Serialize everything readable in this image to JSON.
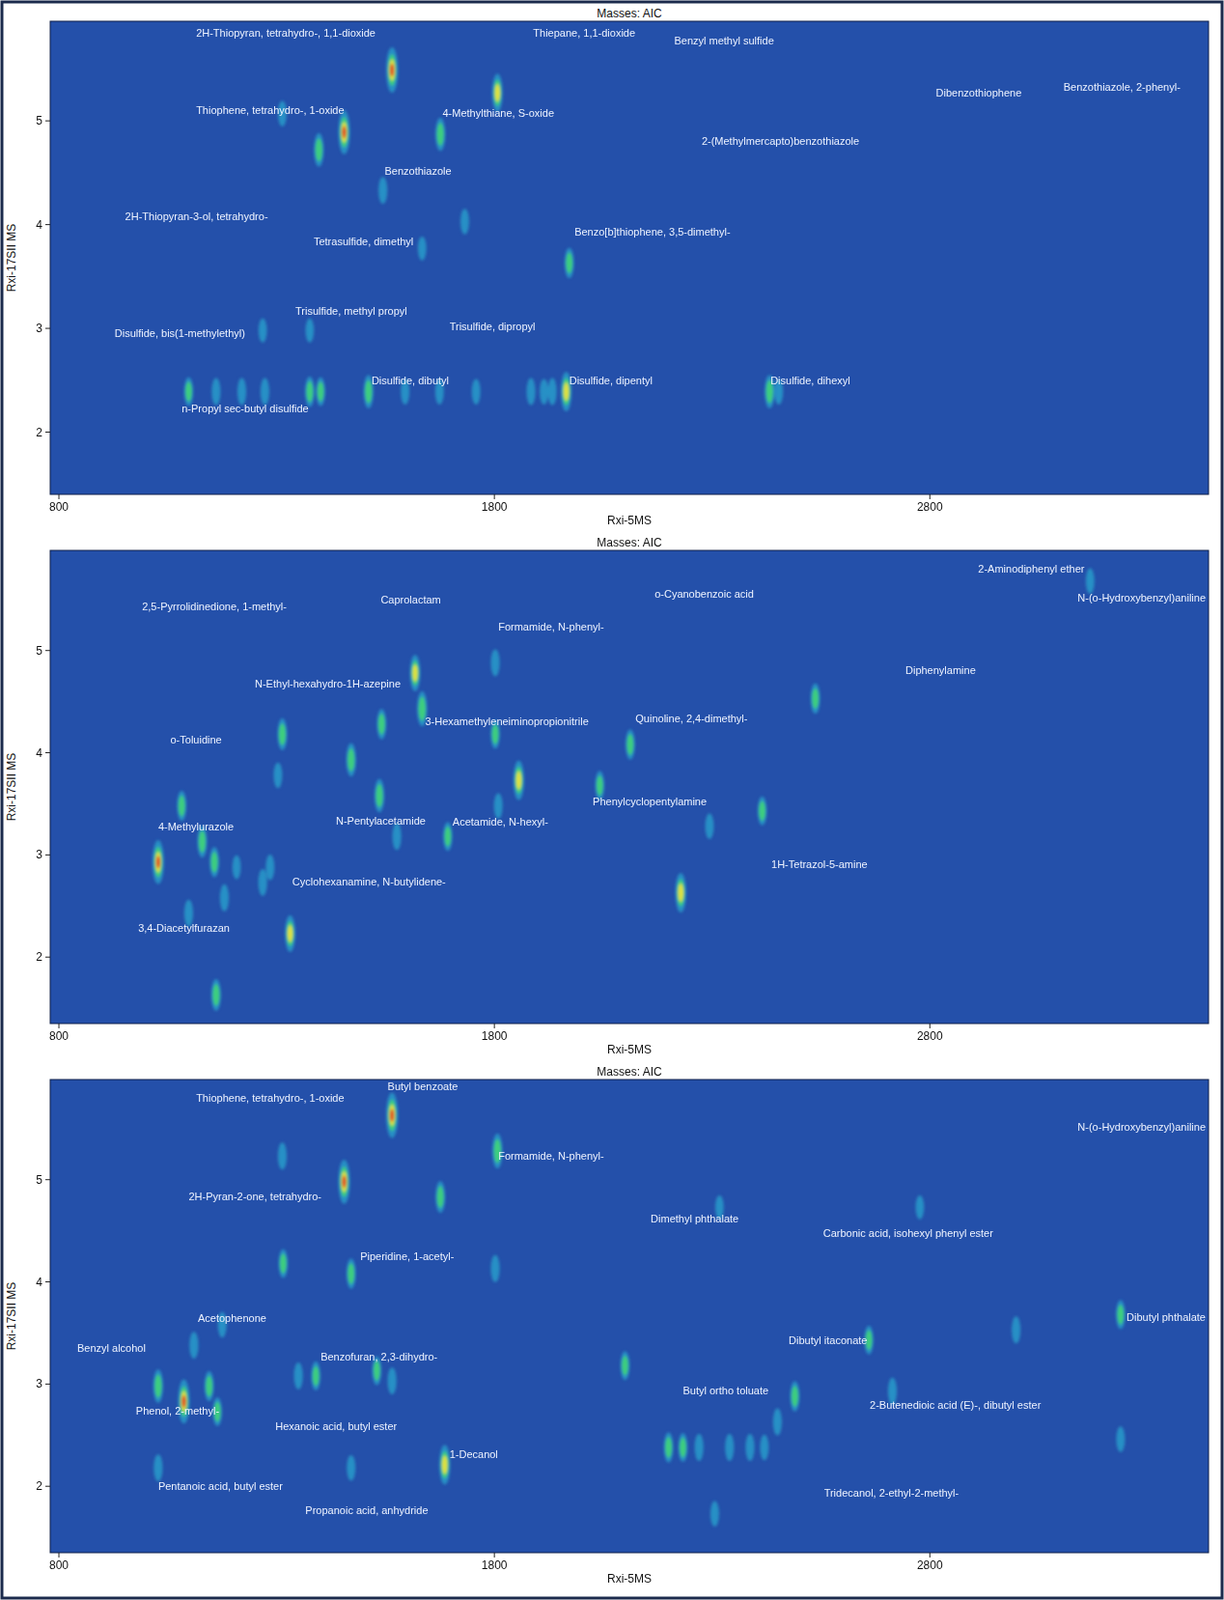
{
  "chart_data": [
    {
      "type": "scatter",
      "title": "Masses: AIC",
      "x_label": "Rxi-5MS",
      "y_label": "Rxi-17SII MS",
      "xlim": [
        780,
        3440
      ],
      "ylim": [
        1.4,
        5.96
      ],
      "xticks": [
        800,
        1800,
        2800
      ],
      "yticks": [
        2,
        3,
        4,
        5
      ],
      "grid": false,
      "x": [
        1565,
        1455,
        1397,
        1313,
        1807,
        1676,
        1544,
        1732,
        1972,
        1376,
        1268,
        1634,
        1098,
        1161,
        1220,
        1273,
        1376,
        1401,
        1511,
        1595,
        1674,
        1758,
        1884,
        1914,
        1933,
        1965,
        2432,
        2453
      ],
      "values": [
        5.49,
        4.89,
        4.72,
        5.07,
        5.27,
        4.87,
        4.33,
        4.03,
        3.63,
        2.98,
        2.98,
        3.77,
        2.39,
        2.39,
        2.39,
        2.39,
        2.39,
        2.39,
        2.39,
        2.39,
        2.39,
        2.39,
        2.39,
        2.39,
        2.39,
        2.39,
        2.39,
        2.39
      ],
      "intensity": [
        1.0,
        0.95,
        0.6,
        0.35,
        0.75,
        0.6,
        0.4,
        0.35,
        0.5,
        0.3,
        0.3,
        0.3,
        0.45,
        0.4,
        0.4,
        0.4,
        0.5,
        0.45,
        0.6,
        0.35,
        0.35,
        0.35,
        0.4,
        0.35,
        0.4,
        0.8,
        0.6,
        0.35
      ],
      "annotations": [
        {
          "text": "2H-Thiopyran, tetrahydro-, 1,1-dioxide",
          "x": 1115,
          "y": 5.81
        },
        {
          "text": "Thiepane, 1,1-dioxide",
          "x": 1889,
          "y": 5.81
        },
        {
          "text": "Benzyl methyl sulfide",
          "x": 2213,
          "y": 5.74
        },
        {
          "text": "Dibenzothiophene",
          "x": 2814,
          "y": 5.23
        },
        {
          "text": "Benzothiazole, 2-phenyl-",
          "x": 3107,
          "y": 5.29
        },
        {
          "text": "Thiophene, tetrahydro-, 1-oxide",
          "x": 1115,
          "y": 5.07
        },
        {
          "text": "4-Methylthiane, S-oxide",
          "x": 1681,
          "y": 5.04
        },
        {
          "text": "2-(Methylmercapto)benzothiazole",
          "x": 2276,
          "y": 4.77
        },
        {
          "text": "Benzothiazole",
          "x": 1548,
          "y": 4.48
        },
        {
          "text": "2H-Thiopyran-3-ol, tetrahydro-",
          "x": 952,
          "y": 4.04
        },
        {
          "text": "Tetrasulfide, dimethyl",
          "x": 1385,
          "y": 3.8
        },
        {
          "text": "Benzo[b]thiophene, 3,5-dimethyl-",
          "x": 1984,
          "y": 3.89
        },
        {
          "text": "Trisulfide, methyl propyl",
          "x": 1343,
          "y": 3.13
        },
        {
          "text": "Trisulfide, dipropyl",
          "x": 1697,
          "y": 2.98
        },
        {
          "text": "Disulfide, bis(1-methylethyl)",
          "x": 928,
          "y": 2.92
        },
        {
          "text": "Disulfide, dibutyl",
          "x": 1518,
          "y": 2.46
        },
        {
          "text": "Disulfide, dipentyl",
          "x": 1972,
          "y": 2.46
        },
        {
          "text": "Disulfide, dihexyl",
          "x": 2434,
          "y": 2.46
        },
        {
          "text": "n-Propyl sec-butyl disulfide",
          "x": 1082,
          "y": 2.19
        }
      ]
    },
    {
      "type": "scatter",
      "title": "Masses: AIC",
      "x_label": "Rxi-5MS",
      "y_label": "Rxi-17SII MS",
      "xlim": [
        780,
        3440
      ],
      "ylim": [
        1.35,
        5.98
      ],
      "xticks": [
        800,
        1800,
        2800
      ],
      "yticks": [
        2,
        3,
        4,
        5
      ],
      "grid": false,
      "x": [
        1028,
        1082,
        1129,
        1157,
        1180,
        1161,
        1098,
        1208,
        1285,
        1268,
        1331,
        1313,
        1303,
        1471,
        1541,
        1536,
        1618,
        1634,
        1576,
        1693,
        1802,
        1802,
        1856,
        1809,
        2042,
        2112,
        2294,
        2228,
        2415,
        2537,
        3168
      ],
      "values": [
        2.93,
        3.48,
        3.13,
        2.93,
        2.58,
        1.63,
        2.43,
        2.88,
        2.88,
        2.73,
        2.23,
        4.18,
        3.78,
        3.93,
        4.28,
        3.58,
        4.78,
        4.43,
        3.18,
        3.18,
        4.18,
        4.88,
        3.73,
        3.48,
        3.68,
        4.08,
        3.28,
        2.63,
        3.43,
        4.53,
        5.68
      ],
      "intensity": [
        0.95,
        0.5,
        0.55,
        0.5,
        0.4,
        0.55,
        0.4,
        0.3,
        0.35,
        0.4,
        0.7,
        0.55,
        0.35,
        0.6,
        0.5,
        0.6,
        0.7,
        0.65,
        0.4,
        0.45,
        0.45,
        0.4,
        0.8,
        0.35,
        0.45,
        0.5,
        0.35,
        0.8,
        0.45,
        0.5,
        0.35
      ],
      "annotations": [
        {
          "text": "2-Aminodiphenyl ether",
          "x": 2911,
          "y": 5.76
        },
        {
          "text": "N-(o-Hydroxybenzyl)aniline",
          "x": 3200,
          "y": 5.48
        },
        {
          "text": "o-Cyanobenzoic acid",
          "x": 2168,
          "y": 5.52
        },
        {
          "text": "Caprolactam",
          "x": 1539,
          "y": 5.46
        },
        {
          "text": "2,5-Pyrrolidinedione, 1-methyl-",
          "x": 991,
          "y": 5.39
        },
        {
          "text": "Formamide, N-phenyl-",
          "x": 1809,
          "y": 5.2
        },
        {
          "text": "Diphenylamine",
          "x": 2744,
          "y": 4.77
        },
        {
          "text": "N-Ethyl-hexahydro-1H-azepine",
          "x": 1250,
          "y": 4.64
        },
        {
          "text": "3-Hexamethyleneiminopropionitrile",
          "x": 1641,
          "y": 4.27
        },
        {
          "text": "Quinoline, 2,4-dimethyl-",
          "x": 2124,
          "y": 4.3
        },
        {
          "text": "o-Toluidine",
          "x": 1056,
          "y": 4.09
        },
        {
          "text": "Phenylcyclopentylamine",
          "x": 2026,
          "y": 3.49
        },
        {
          "text": "4-Methylurazole",
          "x": 1028,
          "y": 3.24
        },
        {
          "text": "N-Pentylacetamide",
          "x": 1436,
          "y": 3.3
        },
        {
          "text": "Acetamide, N-hexyl-",
          "x": 1704,
          "y": 3.29
        },
        {
          "text": "1H-Tetrazol-5-amine",
          "x": 2436,
          "y": 2.87
        },
        {
          "text": "Cyclohexanamine, N-butylidene-",
          "x": 1336,
          "y": 2.7
        },
        {
          "text": "3,4-Diacetylfurazan",
          "x": 982,
          "y": 2.25
        }
      ]
    },
    {
      "type": "scatter",
      "title": "Masses: AIC",
      "x_label": "Rxi-5MS",
      "y_label": "Rxi-17SII MS",
      "xlim": [
        780,
        3440
      ],
      "ylim": [
        1.35,
        5.98
      ],
      "xticks": [
        800,
        1800,
        2800
      ],
      "yticks": [
        2,
        3,
        4,
        5
      ],
      "grid": false,
      "x": [
        1565,
        1455,
        1313,
        1807,
        1676,
        1315,
        1802,
        1087,
        1028,
        1145,
        1110,
        1164,
        1175,
        1028,
        1350,
        1390,
        1471,
        1530,
        1565,
        1686,
        1471,
        2100,
        2200,
        2233,
        2270,
        2340,
        2387,
        2420,
        2490,
        2450,
        2660,
        2714,
        2306,
        2998,
        3238,
        3238,
        2777,
        2317
      ],
      "values": [
        5.63,
        4.98,
        5.23,
        5.28,
        4.83,
        4.18,
        4.13,
        2.83,
        2.98,
        2.98,
        3.38,
        2.73,
        3.58,
        2.18,
        3.08,
        3.08,
        4.08,
        3.13,
        3.03,
        2.21,
        2.18,
        3.18,
        2.38,
        2.38,
        2.38,
        2.38,
        2.38,
        2.38,
        2.88,
        2.63,
        3.43,
        2.93,
        1.73,
        3.53,
        3.68,
        2.46,
        4.73,
        4.73
      ],
      "intensity": [
        1.0,
        0.95,
        0.4,
        0.65,
        0.55,
        0.45,
        0.4,
        0.95,
        0.6,
        0.5,
        0.4,
        0.45,
        0.35,
        0.4,
        0.4,
        0.45,
        0.5,
        0.45,
        0.4,
        0.8,
        0.35,
        0.45,
        0.5,
        0.45,
        0.4,
        0.4,
        0.4,
        0.35,
        0.5,
        0.4,
        0.45,
        0.4,
        0.35,
        0.4,
        0.45,
        0.35,
        0.3,
        0.3
      ],
      "annotations": [
        {
          "text": "Butyl benzoate",
          "x": 1555,
          "y": 5.88
        },
        {
          "text": "Thiophene, tetrahydro-, 1-oxide",
          "x": 1115,
          "y": 5.76
        },
        {
          "text": "N-(o-Hydroxybenzyl)aniline",
          "x": 3200,
          "y": 5.48
        },
        {
          "text": "Formamide, N-phenyl-",
          "x": 1809,
          "y": 5.2
        },
        {
          "text": "2H-Pyran-2-one, tetrahydro-",
          "x": 1098,
          "y": 4.8
        },
        {
          "text": "Dimethyl phthalate",
          "x": 2159,
          "y": 4.58
        },
        {
          "text": "Carbonic acid, isohexyl phenyl ester",
          "x": 2555,
          "y": 4.44
        },
        {
          "text": "Piperidine, 1-acetyl-",
          "x": 1492,
          "y": 4.21
        },
        {
          "text": "Acetophenone",
          "x": 1119,
          "y": 3.61
        },
        {
          "text": "Dibutyl phthalate",
          "x": 3305,
          "y": 3.62
        },
        {
          "text": "Dibutyl itaconate",
          "x": 2476,
          "y": 3.39
        },
        {
          "text": "Benzyl alcohol",
          "x": 842,
          "y": 3.32
        },
        {
          "text": "Benzofuran, 2,3-dihydro-",
          "x": 1401,
          "y": 3.23
        },
        {
          "text": "Butyl ortho toluate",
          "x": 2233,
          "y": 2.9
        },
        {
          "text": "Phenol, 2-methyl-",
          "x": 977,
          "y": 2.7
        },
        {
          "text": "2-Butenedioic acid (E)-, dibutyl ester",
          "x": 2662,
          "y": 2.76
        },
        {
          "text": "Hexanoic acid, butyl ester",
          "x": 1297,
          "y": 2.55
        },
        {
          "text": "1-Decanol",
          "x": 1697,
          "y": 2.28
        },
        {
          "text": "Pentanoic acid, butyl ester",
          "x": 1028,
          "y": 1.96
        },
        {
          "text": "Tridecanol, 2-ethyl-2-methyl-",
          "x": 2557,
          "y": 1.9
        },
        {
          "text": "Propanoic acid, anhydride",
          "x": 1366,
          "y": 1.73
        }
      ]
    }
  ]
}
